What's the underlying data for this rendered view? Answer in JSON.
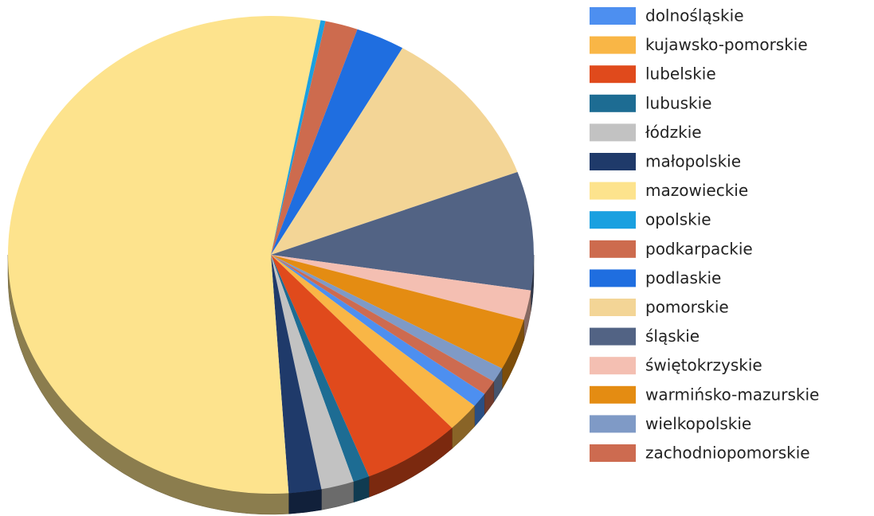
{
  "chart_data": {
    "type": "pie",
    "categories": [
      "dolnośląskie",
      "kujawsko-pomorskie",
      "lubelskie",
      "lubuskie",
      "łódzkie",
      "małopolskie",
      "mazowieckie",
      "opolskie",
      "podkarpackie",
      "podlaskie",
      "pomorskie",
      "śląskie",
      "świętokrzyskie",
      "warmińsko-mazurskie",
      "wielkopolskie",
      "zachodniopomorskie"
    ],
    "values": [
      1,
      2,
      6,
      1,
      2,
      2,
      54,
      0.3,
      2,
      3,
      11,
      8,
      2,
      3.5,
      1,
      1
    ],
    "colors": [
      "#4d8ff0",
      "#f9b646",
      "#e04a1c",
      "#1d6c93",
      "#c2c2c2",
      "#1f3a6a",
      "#fde38d",
      "#1aa0e0",
      "#cd6b4e",
      "#1f6ee0",
      "#f3d596",
      "#526384",
      "#f4bfb2",
      "#e48c12",
      "#7f9ac6",
      "#cd6b50"
    ],
    "legend": "right"
  }
}
